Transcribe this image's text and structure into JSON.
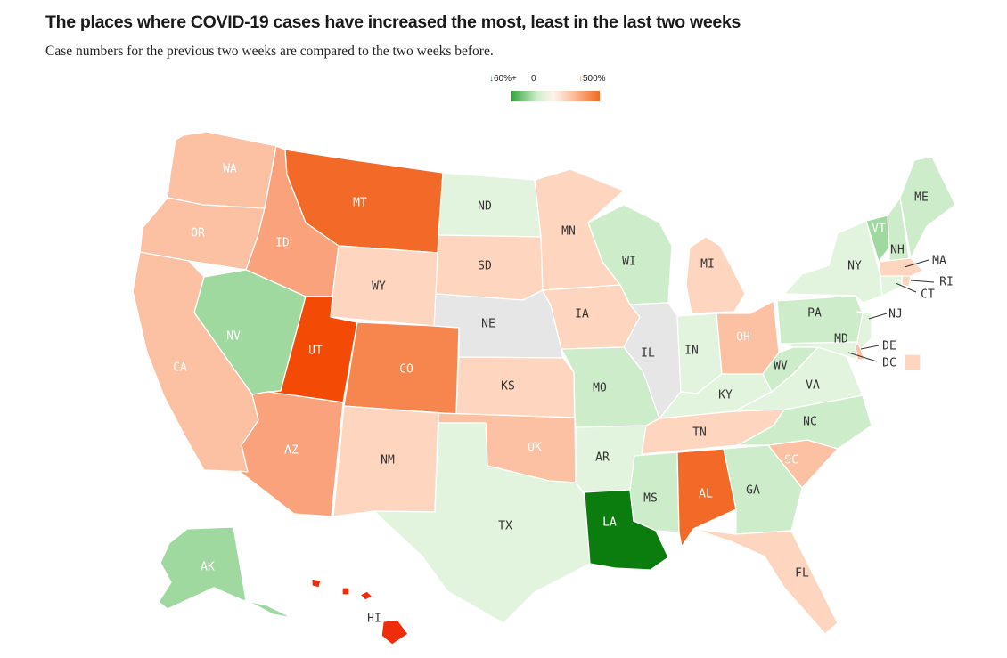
{
  "title": "The places where COVID-19 cases have increased the most, least in the last two weeks",
  "subtitle": "Case numbers for the previous two weeks are compared to the two weeks before.",
  "legend": {
    "left_arrow": "↓",
    "left_label": "60%+",
    "mid_label": "0",
    "right_arrow": "↑",
    "right_label": "500%"
  },
  "palette": {
    "dark_green": "#0a7d0e",
    "mid_green": "#9fd9a0",
    "light_green": "#cdedca",
    "pale_green": "#e2f4de",
    "gray": "#e6e6e6",
    "pale_orange": "#fed6c0",
    "light_orange": "#fcc0a2",
    "mid_orange": "#f9a27b",
    "orange": "#f6854e",
    "dark_orange": "#f36a28",
    "red_orange": "#f34a06",
    "red": "#ee2d0c"
  },
  "states": {
    "WA": {
      "label": "WA",
      "level": "light_orange"
    },
    "OR": {
      "label": "OR",
      "level": "light_orange"
    },
    "CA": {
      "label": "CA",
      "level": "light_orange"
    },
    "ID": {
      "label": "ID",
      "level": "mid_orange"
    },
    "NV": {
      "label": "NV",
      "level": "mid_green"
    },
    "MT": {
      "label": "MT",
      "level": "dark_orange"
    },
    "WY": {
      "label": "WY",
      "level": "pale_orange"
    },
    "UT": {
      "label": "UT",
      "level": "red_orange"
    },
    "CO": {
      "label": "CO",
      "level": "orange"
    },
    "AZ": {
      "label": "AZ",
      "level": "mid_orange"
    },
    "NM": {
      "label": "NM",
      "level": "pale_orange"
    },
    "ND": {
      "label": "ND",
      "level": "pale_green"
    },
    "SD": {
      "label": "SD",
      "level": "pale_orange"
    },
    "NE": {
      "label": "NE",
      "level": "gray"
    },
    "KS": {
      "label": "KS",
      "level": "pale_orange"
    },
    "OK": {
      "label": "OK",
      "level": "light_orange"
    },
    "TX": {
      "label": "TX",
      "level": "pale_green"
    },
    "MN": {
      "label": "MN",
      "level": "pale_orange"
    },
    "IA": {
      "label": "IA",
      "level": "pale_orange"
    },
    "MO": {
      "label": "MO",
      "level": "light_green"
    },
    "AR": {
      "label": "AR",
      "level": "pale_green"
    },
    "LA": {
      "label": "LA",
      "level": "dark_green"
    },
    "WI": {
      "label": "WI",
      "level": "light_green"
    },
    "IL": {
      "label": "IL",
      "level": "gray"
    },
    "MI": {
      "label": "MI",
      "level": "pale_orange"
    },
    "IN": {
      "label": "IN",
      "level": "pale_green"
    },
    "OH": {
      "label": "OH",
      "level": "light_orange"
    },
    "KY": {
      "label": "KY",
      "level": "pale_green"
    },
    "TN": {
      "label": "TN",
      "level": "pale_orange"
    },
    "MS": {
      "label": "MS",
      "level": "light_green"
    },
    "AL": {
      "label": "AL",
      "level": "dark_orange"
    },
    "GA": {
      "label": "GA",
      "level": "light_green"
    },
    "FL": {
      "label": "FL",
      "level": "pale_orange"
    },
    "SC": {
      "label": "SC",
      "level": "light_orange"
    },
    "NC": {
      "label": "NC",
      "level": "light_green"
    },
    "VA": {
      "label": "VA",
      "level": "pale_green"
    },
    "WV": {
      "label": "WV",
      "level": "light_green"
    },
    "PA": {
      "label": "PA",
      "level": "light_green"
    },
    "NY": {
      "label": "NY",
      "level": "pale_green"
    },
    "VT": {
      "label": "VT",
      "level": "mid_green"
    },
    "NH": {
      "label": "NH",
      "level": "light_green"
    },
    "ME": {
      "label": "ME",
      "level": "light_green"
    },
    "MA": {
      "label": "MA",
      "level": "pale_orange"
    },
    "RI": {
      "label": "RI",
      "level": "pale_orange"
    },
    "CT": {
      "label": "CT",
      "level": "pale_green"
    },
    "NJ": {
      "label": "NJ",
      "level": "pale_green"
    },
    "DE": {
      "label": "DE",
      "level": "light_orange"
    },
    "MD": {
      "label": "MD",
      "level": "pale_green"
    },
    "DC": {
      "label": "DC",
      "level": "pale_orange"
    },
    "AK": {
      "label": "AK",
      "level": "mid_green"
    },
    "HI": {
      "label": "HI",
      "level": "red"
    }
  }
}
